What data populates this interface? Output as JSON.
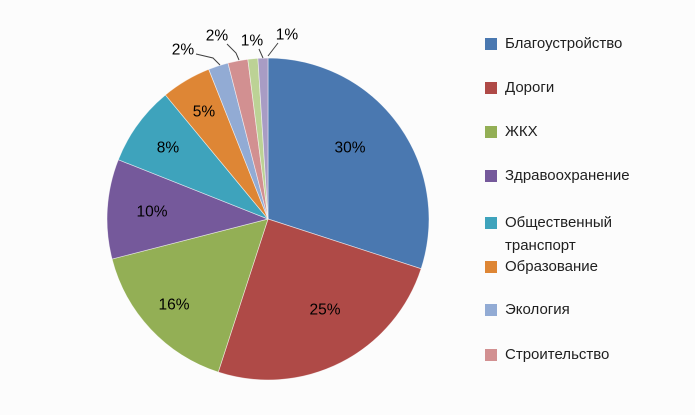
{
  "background_color": "#FCFCFC",
  "legend_text_color": "#1F1F1F",
  "data_label_color": "#000000",
  "chart_data": {
    "type": "pie",
    "legend_position": "right",
    "start_angle_deg": 0,
    "direction": "clockwise",
    "data_label_format": "percent",
    "series": [
      {
        "label": "Благоустройство",
        "value": 30,
        "percent_label": "30%",
        "color": "#4A78B0",
        "show_in_legend": true
      },
      {
        "label": "Дороги",
        "value": 25,
        "percent_label": "25%",
        "color": "#AF4A47",
        "show_in_legend": true
      },
      {
        "label": "ЖКХ",
        "value": 16,
        "percent_label": "16%",
        "color": "#93AF55",
        "show_in_legend": true
      },
      {
        "label": "Здравоохранение",
        "value": 10,
        "percent_label": "10%",
        "color": "#75599B",
        "show_in_legend": true
      },
      {
        "label": "Общественный транспорт",
        "value": 8,
        "percent_label": "8%",
        "color": "#3EA3BC",
        "show_in_legend": true
      },
      {
        "label": "Образование",
        "value": 5,
        "percent_label": "5%",
        "color": "#DE8635",
        "show_in_legend": true
      },
      {
        "label": "Экология",
        "value": 2,
        "percent_label": "2%",
        "color": "#92ABD4",
        "show_in_legend": true
      },
      {
        "label": "Строительство",
        "value": 2,
        "percent_label": "2%",
        "color": "#D29091",
        "show_in_legend": true
      },
      {
        "label": "",
        "value": 1,
        "percent_label": "1%",
        "color": "#BCD295",
        "show_in_legend": false
      },
      {
        "label": "",
        "value": 1,
        "percent_label": "1%",
        "color": "#A89CC4",
        "show_in_legend": false
      }
    ]
  }
}
